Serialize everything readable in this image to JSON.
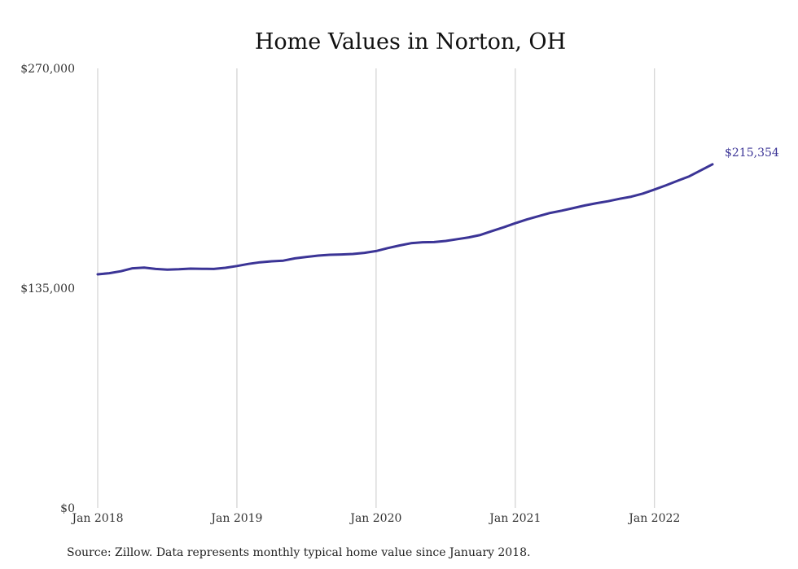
{
  "chart_data": {
    "type": "line",
    "title": "Home Values in Norton, OH",
    "xlabel": "",
    "ylabel": "",
    "ylim": [
      0,
      270000
    ],
    "y_ticks": [
      0,
      135000,
      270000
    ],
    "y_tick_labels": [
      "$0",
      "$135,000",
      "$270,000"
    ],
    "x_ticks": [
      "2018-01",
      "2019-01",
      "2020-01",
      "2021-01",
      "2022-01"
    ],
    "x_tick_labels": [
      "Jan 2018",
      "Jan 2019",
      "Jan 2020",
      "Jan 2021",
      "Jan 2022"
    ],
    "xlim": [
      "2018-01",
      "2022-06"
    ],
    "grid": "vertical",
    "series": [
      {
        "color": "#3b3496",
        "x": [
          "2018-01",
          "2018-02",
          "2018-03",
          "2018-04",
          "2018-05",
          "2018-06",
          "2018-07",
          "2018-08",
          "2018-09",
          "2018-10",
          "2018-11",
          "2018-12",
          "2019-01",
          "2019-02",
          "2019-03",
          "2019-04",
          "2019-05",
          "2019-06",
          "2019-07",
          "2019-08",
          "2019-09",
          "2019-10",
          "2019-11",
          "2019-12",
          "2020-01",
          "2020-02",
          "2020-03",
          "2020-04",
          "2020-05",
          "2020-06",
          "2020-07",
          "2020-08",
          "2020-09",
          "2020-10",
          "2020-11",
          "2020-12",
          "2021-01",
          "2021-02",
          "2021-03",
          "2021-04",
          "2021-05",
          "2021-06",
          "2021-07",
          "2021-08",
          "2021-09",
          "2021-10",
          "2021-11",
          "2021-12",
          "2022-01",
          "2022-02",
          "2022-03",
          "2022-04",
          "2022-05",
          "2022-06"
        ],
        "values": [
          143500,
          144200,
          145400,
          147200,
          147600,
          146800,
          146400,
          146600,
          147000,
          146900,
          146800,
          147500,
          148600,
          149900,
          150900,
          151500,
          151900,
          153300,
          154200,
          155000,
          155500,
          155700,
          156000,
          156700,
          157800,
          159600,
          161200,
          162600,
          163200,
          163300,
          164000,
          165100,
          166200,
          167700,
          170100,
          172400,
          174900,
          177200,
          179200,
          181200,
          182600,
          184200,
          185800,
          187200,
          188400,
          189900,
          191200,
          193100,
          195600,
          198200,
          201000,
          203700,
          207400,
          211100
        ]
      }
    ],
    "end_label": "$215,354",
    "source": "Source: Zillow. Data represents monthly typical home value since January 2018."
  }
}
